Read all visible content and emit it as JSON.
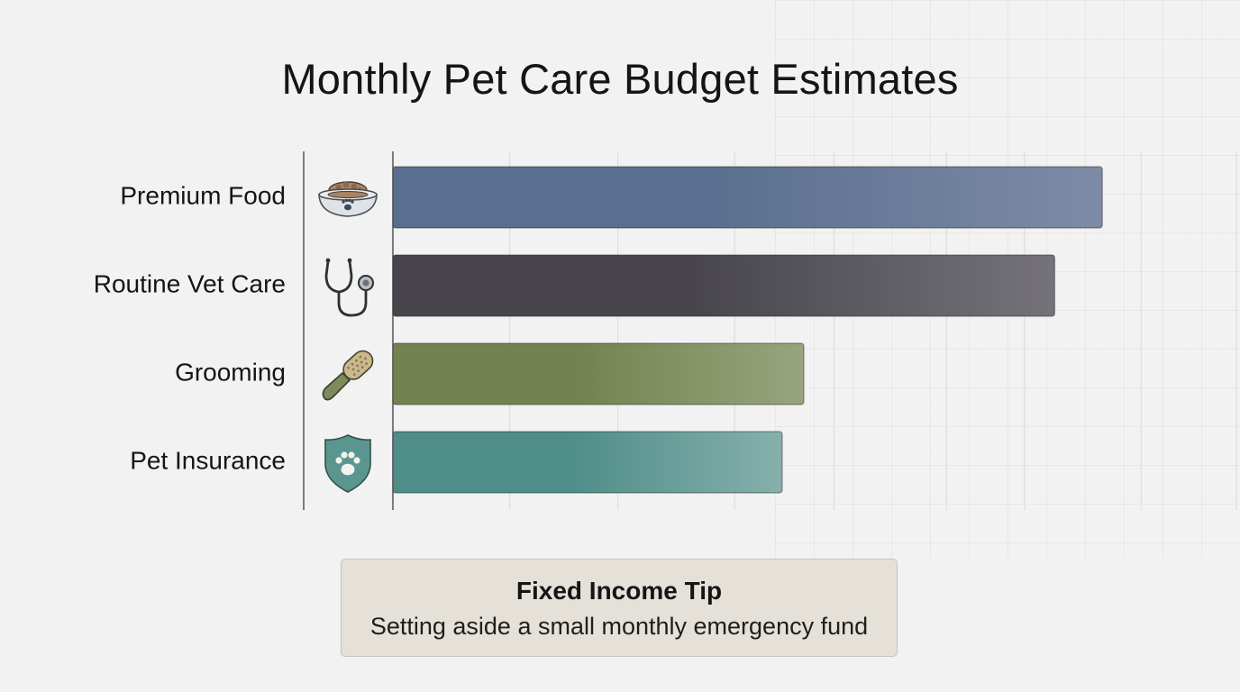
{
  "page": {
    "title": "Monthly Pet Care Budget Estimates"
  },
  "chart_data": {
    "type": "bar",
    "orientation": "horizontal",
    "title": "Monthly Pet Care Budget Estimates",
    "categories": [
      "Premium Food",
      "Routine Vet Care",
      "Grooming",
      "Pet Insurance"
    ],
    "values": [
      82,
      76.5,
      47.5,
      45
    ],
    "xlim": [
      0,
      100
    ],
    "xlabel": "",
    "ylabel": "",
    "grid": true,
    "tick_labels_shown": false,
    "icons": [
      "food-bowl-icon",
      "stethoscope-icon",
      "grooming-brush-icon",
      "paw-shield-icon"
    ],
    "colors": [
      [
        "#5a6f8f",
        "#7d8ba6"
      ],
      [
        "#48464c",
        "#75727a"
      ],
      [
        "#72834f",
        "#98a47e"
      ],
      [
        "#4e8d88",
        "#86b0ac"
      ]
    ]
  },
  "tip": {
    "title": "Fixed Income Tip",
    "text": "Setting aside a small monthly emergency fund"
  }
}
